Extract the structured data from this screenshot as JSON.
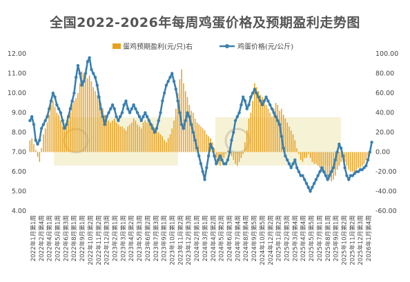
{
  "chart_data": {
    "type": "bar+line",
    "title": "全国2022-2026年每周鸡蛋价格及预期盈利走势图",
    "legend_position": "top",
    "colors": {
      "bars": "#E8A020",
      "line": "#3A7FB0",
      "line_highlight": "#5A8F5A"
    },
    "y_left": {
      "ylim": [
        4.0,
        12.0
      ],
      "ticks": [
        "12.00",
        "11.00",
        "10.00",
        "9.00",
        "8.00",
        "7.00",
        "6.00",
        "5.00",
        "4.00"
      ]
    },
    "y_right": {
      "ylim": [
        -60,
        100
      ],
      "ticks": [
        "100.00",
        "80.00",
        "60.00",
        "40.00",
        "20.00",
        "0.00",
        "-20.00",
        "-40.00",
        "-60.00"
      ]
    },
    "x_tick_labels": [
      "2022年1月第1周",
      "2022年2月第4周",
      "2022年4月第1周",
      "2022年5月第1周",
      "2022年6月第3周",
      "2022年8月第1周",
      "2022年9月第1周",
      "2022年10月第2周",
      "2022年11月第2周",
      "2022年12月第3周",
      "2023年2月第1周",
      "2023年3月第1周",
      "2023年4月第2周",
      "2023年5月第3周",
      "2023年6月第2周",
      "2023年7月第3周",
      "2023年9月第1周",
      "2023年10月第1周",
      "2023年11月第2周",
      "2023年12月第3周",
      "2024年2月第1周",
      "2024年3月第1周",
      "2024年4月第2周",
      "2024年5月第2周",
      "2024年6月第3周",
      "2024年7月第4周",
      "2024年8月第4周",
      "2024年9月第5周",
      "2024年10月第5周",
      "2024年12月第2周",
      "2025年1月第2周",
      "2025年2月第3周",
      "2025年3月第4周",
      "2025年4月第4周",
      "2025年5月第5周",
      "2025年7月第1周",
      "2025年8月第1周",
      "2025年9月第1周",
      "2025年10月第2周",
      "2025年11月第2周",
      "2025年12月第3周",
      "2026年1月第4周"
    ],
    "series": [
      {
        "name": "蛋鸡预期盈利(元/只)右",
        "type": "bar",
        "axis": "right",
        "values": [
          12,
          14,
          8,
          2,
          -5,
          -10,
          4,
          18,
          24,
          30,
          38,
          48,
          52,
          46,
          40,
          38,
          32,
          26,
          22,
          28,
          32,
          40,
          48,
          52,
          55,
          60,
          70,
          82,
          80,
          85,
          75,
          78,
          72,
          66,
          62,
          58,
          56,
          50,
          44,
          38,
          36,
          32,
          30,
          32,
          34,
          30,
          28,
          26,
          26,
          24,
          22,
          26,
          28,
          30,
          34,
          32,
          28,
          26,
          24,
          30,
          32,
          30,
          34,
          30,
          28,
          24,
          22,
          20,
          18,
          16,
          12,
          10,
          14,
          18,
          24,
          32,
          44,
          60,
          74,
          84,
          70,
          62,
          56,
          48,
          42,
          40,
          34,
          30,
          28,
          26,
          24,
          22,
          18,
          16,
          14,
          10,
          4,
          -6,
          -12,
          -14,
          -10,
          -6,
          -2,
          2,
          4,
          -4,
          -8,
          -12,
          -14,
          -10,
          -6,
          -2,
          10,
          22,
          34,
          40,
          52,
          70,
          66,
          62,
          58,
          56,
          52,
          48,
          44,
          40,
          36,
          44,
          50,
          48,
          42,
          44,
          38,
          34,
          30,
          26,
          22,
          18,
          12,
          4,
          -2,
          -8,
          -10,
          -6,
          -6,
          -2,
          -6,
          -10,
          -12,
          -12,
          -14,
          -16,
          -20,
          -22,
          -22,
          -26,
          -28,
          -30,
          -28,
          -24,
          -18,
          -14,
          -10,
          -6,
          -10,
          -14,
          -18,
          -20,
          -20,
          -22,
          -18,
          -16,
          -16,
          -14,
          -12,
          -8,
          -4,
          -2,
          0
        ]
      },
      {
        "name": "鸡蛋价格(元/公斤)",
        "type": "line",
        "axis": "left",
        "values": [
          8.6,
          8.8,
          8.4,
          7.6,
          7.4,
          7.6,
          8.2,
          8.4,
          8.6,
          8.8,
          9.2,
          9.6,
          10.0,
          9.8,
          9.4,
          9.2,
          9.0,
          8.6,
          8.2,
          8.4,
          8.8,
          9.2,
          9.6,
          10.0,
          10.8,
          11.4,
          11.0,
          10.4,
          10.6,
          11.0,
          11.6,
          11.8,
          11.2,
          11.0,
          10.8,
          10.4,
          9.8,
          9.2,
          8.8,
          8.4,
          8.8,
          9.0,
          9.2,
          9.4,
          9.2,
          8.8,
          8.6,
          8.8,
          9.0,
          9.4,
          9.6,
          9.2,
          9.0,
          9.2,
          9.4,
          9.2,
          9.0,
          8.8,
          8.6,
          8.8,
          9.0,
          8.8,
          8.6,
          8.4,
          8.2,
          8.0,
          8.2,
          8.6,
          9.0,
          9.6,
          10.0,
          10.4,
          10.6,
          10.8,
          11.0,
          10.6,
          10.2,
          9.6,
          9.0,
          8.4,
          8.2,
          8.6,
          9.0,
          8.8,
          8.4,
          8.0,
          7.6,
          7.2,
          6.8,
          6.4,
          6.0,
          5.6,
          6.2,
          6.8,
          7.4,
          7.2,
          6.8,
          6.4,
          6.6,
          6.8,
          6.6,
          6.4,
          6.4,
          6.6,
          7.0,
          7.6,
          8.0,
          8.6,
          8.8,
          9.0,
          9.4,
          9.8,
          9.6,
          9.2,
          9.4,
          9.8,
          10.0,
          10.2,
          10.0,
          9.8,
          9.6,
          9.4,
          9.6,
          9.8,
          9.6,
          9.4,
          9.2,
          9.0,
          8.8,
          8.6,
          8.4,
          7.8,
          7.2,
          6.8,
          6.6,
          6.4,
          6.2,
          6.4,
          6.6,
          6.2,
          6.0,
          5.8,
          5.8,
          5.6,
          5.4,
          5.2,
          5.0,
          5.2,
          5.4,
          5.6,
          5.8,
          6.0,
          6.2,
          6.0,
          5.8,
          5.6,
          5.8,
          6.0,
          6.2,
          6.6,
          7.0,
          7.4,
          7.2,
          6.8,
          6.2,
          5.8,
          5.6,
          5.8,
          5.8,
          5.9,
          6.0,
          6.0,
          6.1,
          6.1,
          6.2,
          6.3,
          6.6,
          7.0,
          7.5
        ]
      }
    ]
  }
}
